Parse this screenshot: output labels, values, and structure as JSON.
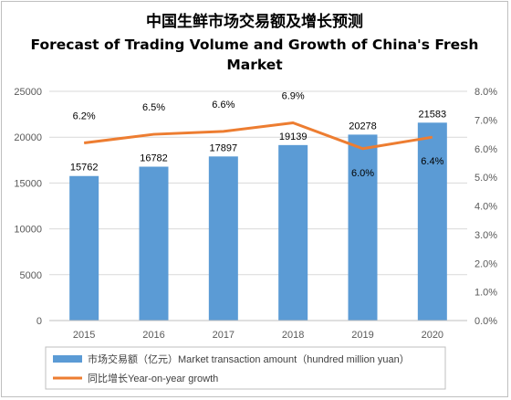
{
  "chart_data": {
    "type": "bar",
    "title_cn": "中国生鲜市场交易额及增长预测",
    "title_en_line1": "Forecast of Trading Volume and Growth of China's Fresh",
    "title_en_line2": "Market",
    "categories": [
      "2015",
      "2016",
      "2017",
      "2018",
      "2019",
      "2020"
    ],
    "series": [
      {
        "name": "市场交易额（亿元）Market transaction amount（hundred million yuan）",
        "type": "bar",
        "axis": "left",
        "color": "#5b9bd5",
        "values": [
          15762,
          16782,
          17897,
          19139,
          20278,
          21583
        ],
        "labels": [
          "15762",
          "16782",
          "17897",
          "19139",
          "20278",
          "21583"
        ]
      },
      {
        "name": "同比增长Year-on-year growth",
        "type": "line",
        "axis": "right",
        "color": "#ed7d31",
        "values": [
          6.2,
          6.5,
          6.6,
          6.9,
          6.0,
          6.4
        ],
        "labels": [
          "6.2%",
          "6.5%",
          "6.6%",
          "6.9%",
          "6.0%",
          "6.4%"
        ]
      }
    ],
    "y_left": {
      "min": 0,
      "max": 25000,
      "ticks": [
        "0",
        "5000",
        "10000",
        "15000",
        "20000",
        "25000"
      ]
    },
    "y_right": {
      "min": 0,
      "max": 8,
      "ticks": [
        "0.0%",
        "1.0%",
        "2.0%",
        "3.0%",
        "4.0%",
        "5.0%",
        "6.0%",
        "7.0%",
        "8.0%"
      ]
    },
    "grid": true,
    "legend_position": "bottom-left"
  }
}
